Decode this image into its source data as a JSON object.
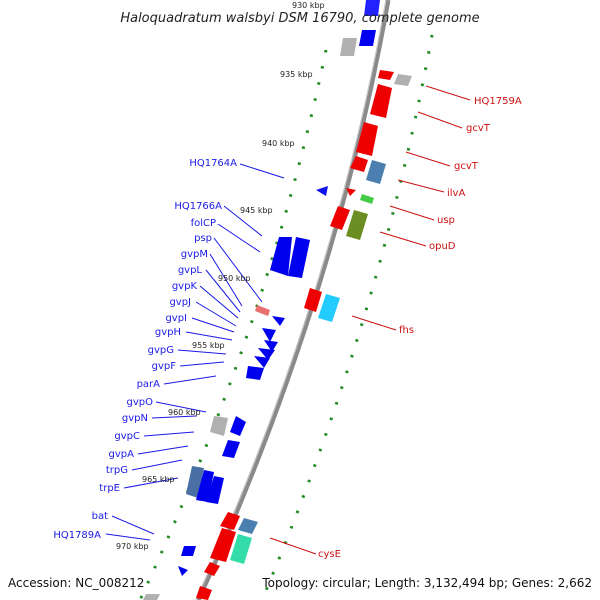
{
  "title": "Haloquadratum walsbyi DSM 16790, complete genome",
  "footer": {
    "accession": "Accession: NC_008212",
    "summary": "Topology: circular; Length: 3,132,494 bp; Genes: 2,662"
  },
  "colors": {
    "forward_gene": "#0000ff",
    "reverse_gene": "#ff0000",
    "backbone": "#888888",
    "tick": "#228b22",
    "pseudogene": "#aaaaaa"
  },
  "scale_labels": [
    {
      "text": "930 kbp"
    },
    {
      "text": "935 kbp"
    },
    {
      "text": "940 kbp"
    },
    {
      "text": "945 kbp"
    },
    {
      "text": "950 kbp"
    },
    {
      "text": "955 kbp"
    },
    {
      "text": "960 kbp"
    },
    {
      "text": "965 kbp"
    },
    {
      "text": "970 kbp"
    }
  ],
  "forward_labels": [
    {
      "text": "HQ1764A"
    },
    {
      "text": "HQ1766A"
    },
    {
      "text": "folCP"
    },
    {
      "text": "psp"
    },
    {
      "text": "gvpM"
    },
    {
      "text": "gvpL"
    },
    {
      "text": "gvpK"
    },
    {
      "text": "gvpJ"
    },
    {
      "text": "gvpI"
    },
    {
      "text": "gvpH"
    },
    {
      "text": "gvpG"
    },
    {
      "text": "gvpF"
    },
    {
      "text": "parA"
    },
    {
      "text": "gvpO"
    },
    {
      "text": "gvpN"
    },
    {
      "text": "gvpC"
    },
    {
      "text": "gvpA"
    },
    {
      "text": "trpG"
    },
    {
      "text": "trpE"
    },
    {
      "text": "bat"
    },
    {
      "text": "HQ1789A"
    }
  ],
  "reverse_labels": [
    {
      "text": "HQ1759A"
    },
    {
      "text": "gcvT"
    },
    {
      "text": "gcvT"
    },
    {
      "text": "ilvA"
    },
    {
      "text": "usp"
    },
    {
      "text": "opuD"
    },
    {
      "text": "fhs"
    },
    {
      "text": "cysE"
    }
  ]
}
